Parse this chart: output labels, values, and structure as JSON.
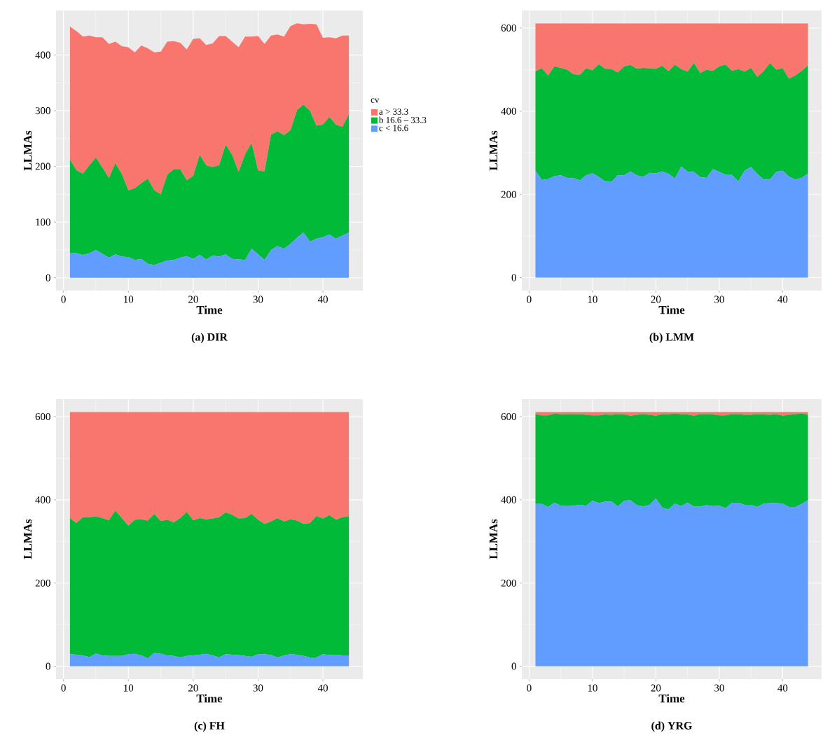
{
  "chart_data": [
    {
      "type": "area",
      "title": "(a) DIR",
      "xlabel": "Time",
      "ylabel": "LLMAs",
      "stacked": true,
      "grid": true,
      "legend": "right",
      "legend_title": "cv",
      "x": [
        1,
        2,
        3,
        4,
        5,
        6,
        7,
        8,
        9,
        10,
        11,
        12,
        13,
        14,
        15,
        16,
        17,
        18,
        19,
        20,
        21,
        22,
        23,
        24,
        25,
        26,
        27,
        28,
        29,
        30,
        31,
        32,
        33,
        34,
        35,
        36,
        37,
        38,
        39,
        40,
        41,
        42,
        43,
        44
      ],
      "xlim": [
        -1.15,
        46.15
      ],
      "xticks": [
        0,
        10,
        20,
        30,
        40
      ],
      "ylim": [
        -23,
        480
      ],
      "yticks": [
        0,
        100,
        200,
        300,
        400
      ],
      "series": [
        {
          "name": "c < 16.6",
          "color": "#619cff",
          "values": [
            45,
            44,
            41,
            44,
            50,
            43,
            36,
            42,
            38,
            37,
            32,
            34,
            25,
            23,
            27,
            31,
            32,
            36,
            39,
            34,
            41,
            33,
            40,
            38,
            42,
            34,
            33,
            32,
            52,
            42,
            32,
            50,
            57,
            52,
            61,
            72,
            81,
            65,
            70,
            73,
            78,
            70,
            76,
            81
          ]
        },
        {
          "name": "b 16.6 – 33.3",
          "color": "#00ba38",
          "values": [
            167,
            149,
            146,
            158,
            166,
            155,
            143,
            164,
            148,
            120,
            129,
            136,
            153,
            134,
            123,
            154,
            163,
            159,
            136,
            149,
            180,
            169,
            159,
            164,
            197,
            187,
            157,
            190,
            190,
            151,
            159,
            207,
            206,
            204,
            204,
            229,
            230,
            235,
            203,
            202,
            211,
            205,
            195,
            213
          ]
        },
        {
          "name": "a > 33.3",
          "color": "#f8766d",
          "values": [
            239,
            250,
            246,
            233,
            216,
            234,
            241,
            218,
            230,
            257,
            244,
            247,
            234,
            248,
            256,
            239,
            230,
            227,
            235,
            246,
            209,
            216,
            222,
            232,
            195,
            203,
            224,
            211,
            191,
            241,
            229,
            178,
            174,
            177,
            187,
            156,
            144,
            156,
            182,
            156,
            143,
            155,
            164,
            141
          ]
        }
      ]
    },
    {
      "type": "area",
      "title": "(b) LMM",
      "xlabel": "Time",
      "ylabel": "LLMAs",
      "stacked": true,
      "grid": true,
      "x": [
        1,
        2,
        3,
        4,
        5,
        6,
        7,
        8,
        9,
        10,
        11,
        12,
        13,
        14,
        15,
        16,
        17,
        18,
        19,
        20,
        21,
        22,
        23,
        24,
        25,
        26,
        27,
        28,
        29,
        30,
        31,
        32,
        33,
        34,
        35,
        36,
        37,
        38,
        39,
        40,
        41,
        42,
        43,
        44
      ],
      "xlim": [
        -1.15,
        46.15
      ],
      "xticks": [
        0,
        10,
        20,
        30,
        40
      ],
      "ylim": [
        -31,
        642
      ],
      "yticks": [
        0,
        200,
        400,
        600
      ],
      "series": [
        {
          "color": "#619cff",
          "values": [
            257,
            235,
            237,
            244,
            246,
            240,
            239,
            234,
            246,
            251,
            242,
            231,
            230,
            246,
            246,
            255,
            246,
            242,
            252,
            251,
            255,
            250,
            238,
            267,
            255,
            254,
            242,
            240,
            261,
            254,
            247,
            247,
            231,
            257,
            266,
            249,
            236,
            236,
            254,
            257,
            243,
            236,
            240,
            250
          ]
        },
        {
          "color": "#00ba38",
          "values": [
            239,
            268,
            249,
            264,
            258,
            260,
            250,
            253,
            257,
            247,
            271,
            271,
            271,
            247,
            262,
            256,
            256,
            262,
            251,
            251,
            254,
            246,
            274,
            234,
            240,
            262,
            250,
            260,
            236,
            254,
            265,
            250,
            270,
            238,
            238,
            233,
            260,
            280,
            246,
            246,
            235,
            250,
            257,
            260
          ]
        },
        {
          "color": "#f8766d",
          "values": [
            115,
            108,
            125,
            103,
            107,
            111,
            122,
            124,
            108,
            113,
            98,
            109,
            110,
            118,
            103,
            100,
            109,
            107,
            108,
            109,
            102,
            115,
            99,
            110,
            116,
            95,
            119,
            111,
            114,
            103,
            99,
            114,
            110,
            116,
            107,
            129,
            115,
            95,
            111,
            108,
            133,
            125,
            114,
            101
          ]
        }
      ]
    },
    {
      "type": "area",
      "title": "(c) FH",
      "xlabel": "Time",
      "ylabel": "LLMAs",
      "stacked": true,
      "grid": true,
      "x": [
        1,
        2,
        3,
        4,
        5,
        6,
        7,
        8,
        9,
        10,
        11,
        12,
        13,
        14,
        15,
        16,
        17,
        18,
        19,
        20,
        21,
        22,
        23,
        24,
        25,
        26,
        27,
        28,
        29,
        30,
        31,
        32,
        33,
        34,
        35,
        36,
        37,
        38,
        39,
        40,
        41,
        42,
        43,
        44
      ],
      "xlim": [
        -1.15,
        46.15
      ],
      "xticks": [
        0,
        10,
        20,
        30,
        40
      ],
      "ylim": [
        -31,
        642
      ],
      "yticks": [
        0,
        200,
        400,
        600
      ],
      "series": [
        {
          "color": "#619cff",
          "values": [
            29,
            28,
            26,
            22,
            31,
            26,
            25,
            25,
            25,
            29,
            30,
            26,
            19,
            32,
            30,
            26,
            25,
            21,
            25,
            26,
            28,
            30,
            26,
            21,
            29,
            28,
            27,
            25,
            23,
            29,
            29,
            27,
            21,
            26,
            29,
            28,
            25,
            21,
            21,
            29,
            27,
            28,
            26,
            26
          ]
        },
        {
          "color": "#00ba38",
          "values": [
            327,
            316,
            332,
            336,
            329,
            330,
            326,
            349,
            331,
            309,
            322,
            327,
            331,
            334,
            319,
            326,
            321,
            335,
            346,
            325,
            328,
            323,
            329,
            337,
            341,
            336,
            328,
            331,
            343,
            323,
            313,
            321,
            335,
            322,
            324,
            322,
            317,
            323,
            340,
            326,
            336,
            324,
            332,
            334
          ]
        },
        {
          "color": "#f8766d",
          "values": [
            255,
            267,
            253,
            253,
            251,
            255,
            260,
            237,
            255,
            273,
            259,
            258,
            261,
            245,
            262,
            259,
            265,
            255,
            240,
            260,
            255,
            258,
            256,
            253,
            241,
            247,
            256,
            255,
            245,
            259,
            269,
            263,
            255,
            263,
            258,
            261,
            269,
            267,
            250,
            256,
            248,
            259,
            253,
            251
          ]
        }
      ]
    },
    {
      "type": "area",
      "title": "(d) YRG",
      "xlabel": "Time",
      "ylabel": "LLMAs",
      "stacked": true,
      "grid": true,
      "x": [
        1,
        2,
        3,
        4,
        5,
        6,
        7,
        8,
        9,
        10,
        11,
        12,
        13,
        14,
        15,
        16,
        17,
        18,
        19,
        20,
        21,
        22,
        23,
        24,
        25,
        26,
        27,
        28,
        29,
        30,
        31,
        32,
        33,
        34,
        35,
        36,
        37,
        38,
        39,
        40,
        41,
        42,
        43,
        44
      ],
      "xlim": [
        -1.15,
        46.15
      ],
      "xticks": [
        0,
        10,
        20,
        30,
        40
      ],
      "ylim": [
        -31,
        642
      ],
      "yticks": [
        0,
        200,
        400,
        600
      ],
      "series": [
        {
          "color": "#619cff",
          "values": [
            390,
            390,
            383,
            393,
            386,
            385,
            386,
            388,
            386,
            398,
            392,
            396,
            396,
            384,
            398,
            399,
            387,
            384,
            388,
            403,
            381,
            377,
            391,
            385,
            393,
            384,
            384,
            387,
            385,
            386,
            380,
            393,
            393,
            388,
            388,
            383,
            391,
            392,
            392,
            391,
            383,
            383,
            390,
            399
          ]
        },
        {
          "color": "#00ba38",
          "values": [
            216,
            213,
            220,
            214,
            220,
            220,
            219,
            218,
            218,
            205,
            211,
            209,
            208,
            222,
            207,
            203,
            217,
            222,
            216,
            199,
            225,
            229,
            216,
            221,
            212,
            218,
            222,
            218,
            220,
            217,
            223,
            213,
            213,
            216,
            216,
            223,
            214,
            212,
            214,
            211,
            221,
            223,
            218,
            205
          ]
        },
        {
          "color": "#f8766d",
          "values": [
            5,
            8,
            8,
            4,
            5,
            6,
            6,
            5,
            7,
            8,
            8,
            6,
            7,
            5,
            6,
            9,
            7,
            5,
            7,
            9,
            5,
            5,
            4,
            5,
            6,
            9,
            5,
            6,
            6,
            8,
            8,
            5,
            5,
            7,
            7,
            5,
            6,
            7,
            5,
            9,
            7,
            5,
            3,
            7
          ]
        }
      ]
    }
  ]
}
